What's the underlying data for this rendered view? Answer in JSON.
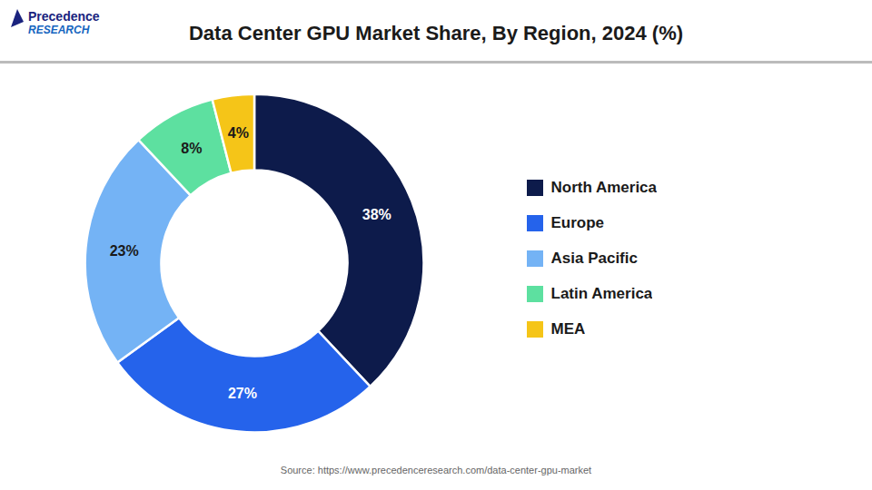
{
  "chart_data": {
    "type": "pie",
    "title": "Data Center GPU Market Share, By Region, 2024 (%)",
    "annotations": [
      "Precedence",
      "RESEARCH",
      "Source: https://www.precedenceresearch.com/data-center-gpu-market"
    ],
    "categories": [
      "North America",
      "Europe",
      "Asia Pacific",
      "Latin America",
      "MEA"
    ],
    "values": [
      38,
      27,
      23,
      8,
      4
    ],
    "colors": [
      "#0d1b4b",
      "#2563eb",
      "#74b3f5",
      "#5de0a0",
      "#f5c518"
    ],
    "data_labels": true,
    "value_labels": [
      "38%",
      "27%",
      "23%",
      "8%",
      "4%"
    ],
    "legend": "right"
  }
}
